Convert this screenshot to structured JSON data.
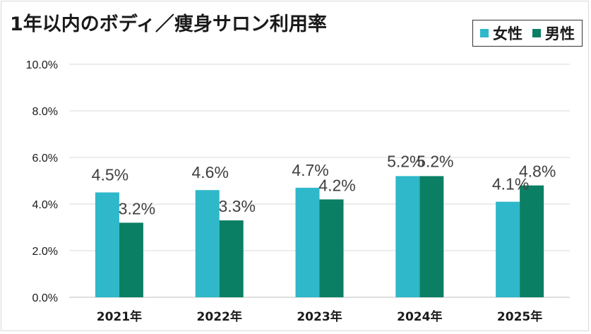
{
  "chart_data": {
    "type": "bar",
    "title": "1年以内のボディ／痩身サロン利用率",
    "categories": [
      "2021年",
      "2022年",
      "2023年",
      "2024年",
      "2025年"
    ],
    "series": [
      {
        "name": "女性",
        "values": [
          4.5,
          4.6,
          4.7,
          5.2,
          4.1
        ],
        "color": "#2eb8c9"
      },
      {
        "name": "男性",
        "values": [
          3.2,
          3.3,
          4.2,
          5.2,
          4.8
        ],
        "color": "#0a7f64"
      }
    ],
    "ylim": [
      0,
      10
    ],
    "yticks": [
      "0.0%",
      "2.0%",
      "4.0%",
      "6.0%",
      "8.0%",
      "10.0%"
    ],
    "value_suffix": "%",
    "grid": true,
    "legend_position": "top-right"
  }
}
